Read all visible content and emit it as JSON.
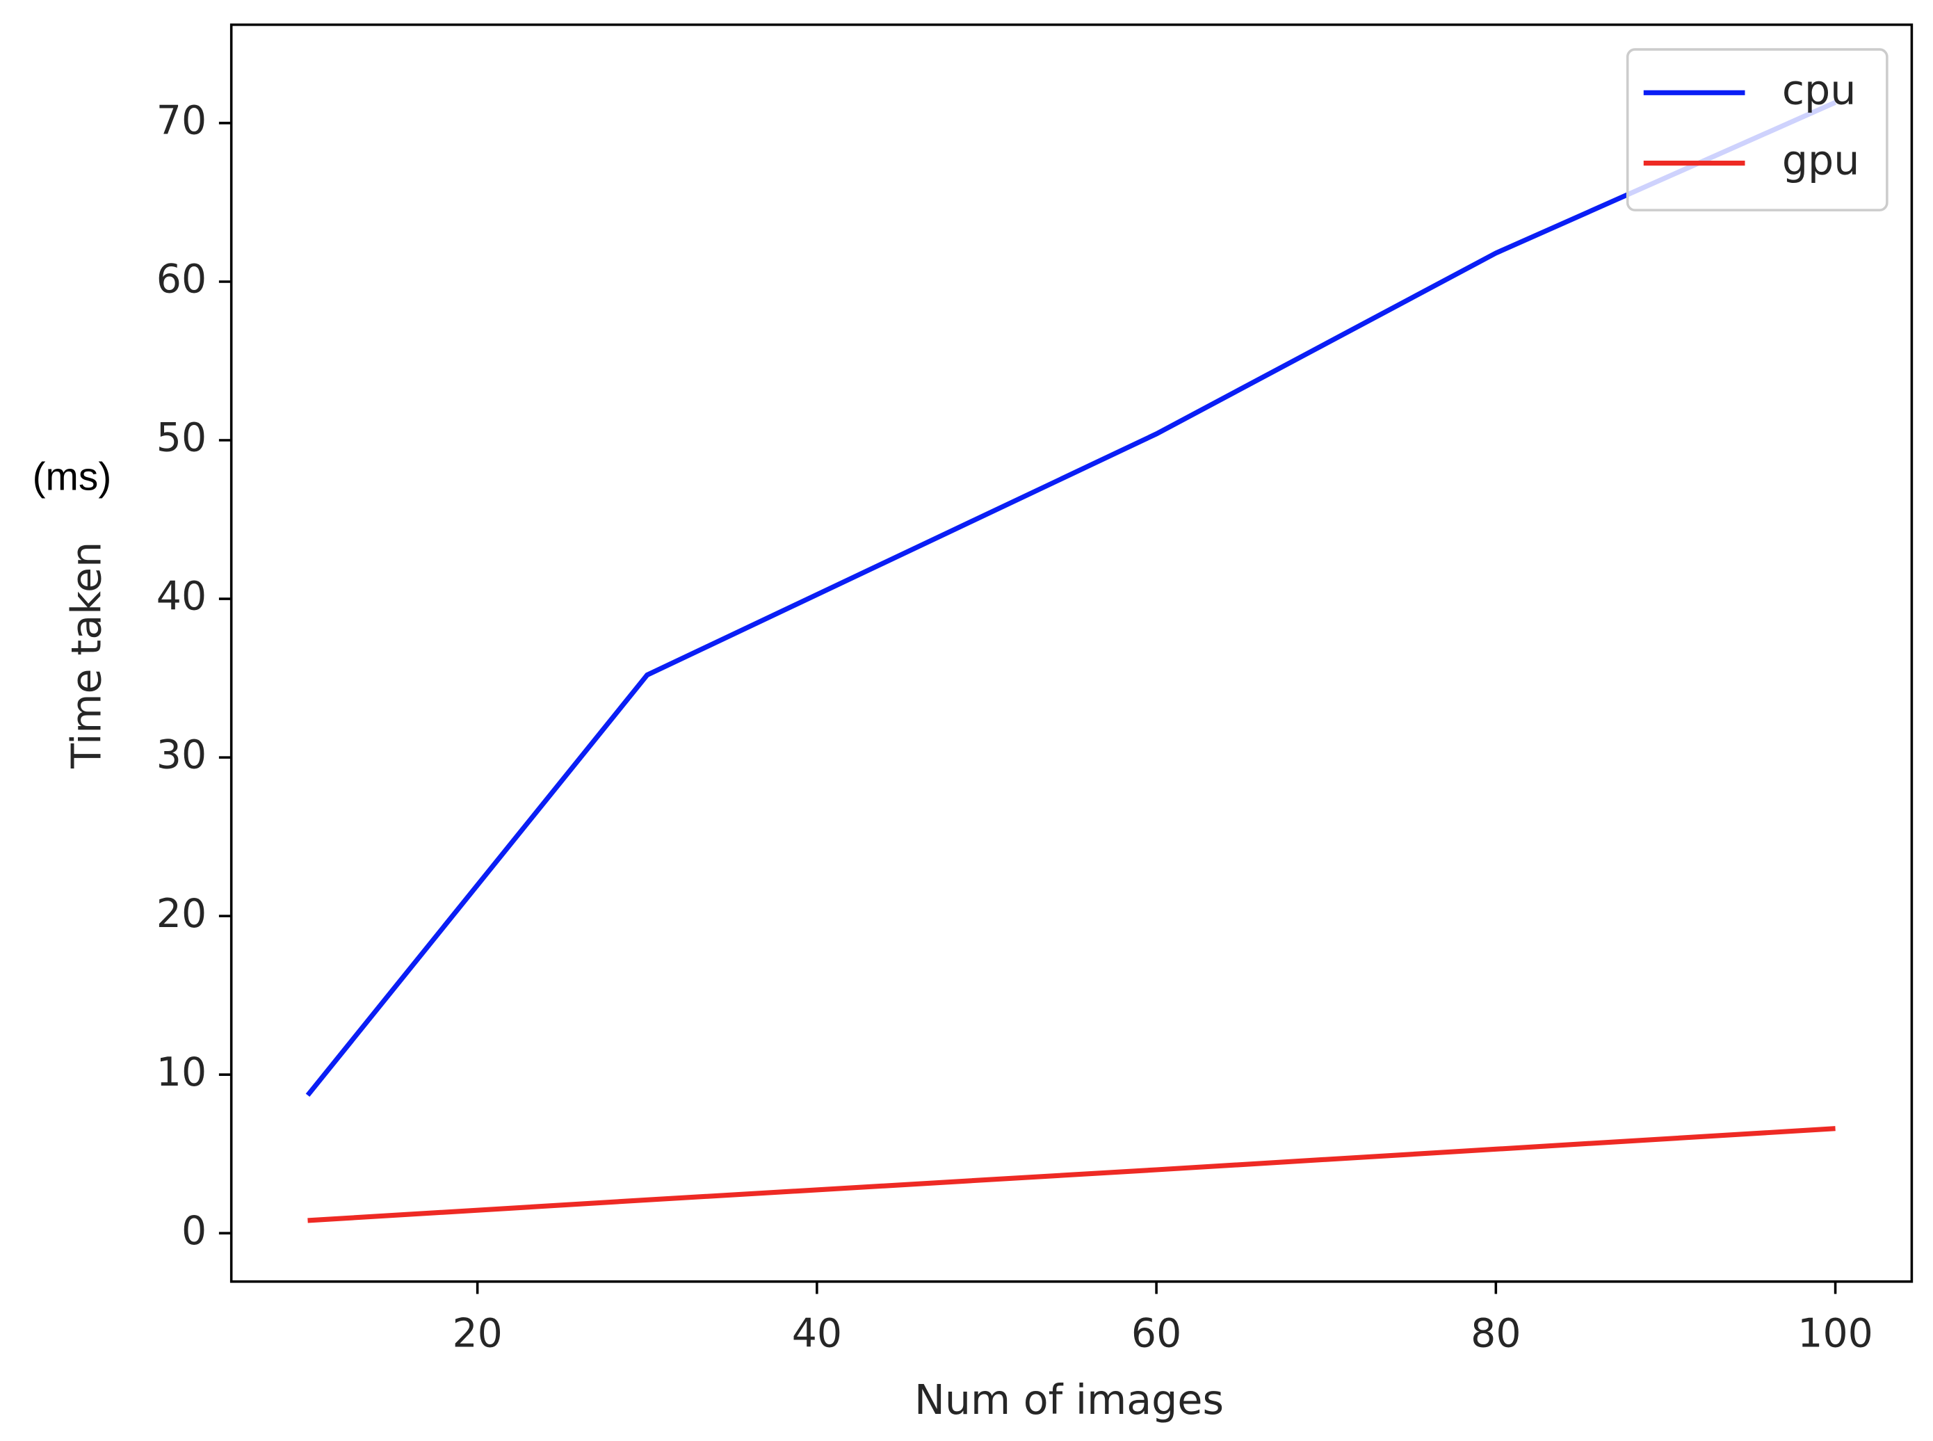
{
  "chart_data": {
    "type": "line",
    "xlabel": "Num of images",
    "ylabel": "Time taken",
    "annotations": [
      "(ms)"
    ],
    "x": [
      10,
      30,
      60,
      80,
      100
    ],
    "series": [
      {
        "name": "cpu",
        "color": "#0a1ef5",
        "values": [
          8.7,
          35.2,
          50.4,
          61.8,
          71.3
        ]
      },
      {
        "name": "gpu",
        "color": "#ee2a24",
        "values": [
          0.8,
          2.1,
          4.0,
          5.3,
          6.6
        ]
      }
    ],
    "xlim": [
      5.5,
      104.5
    ],
    "ylim": [
      -3.05,
      76.2
    ],
    "xticks": [
      20,
      40,
      60,
      80,
      100
    ],
    "yticks": [
      0,
      10,
      20,
      30,
      40,
      50,
      60,
      70
    ],
    "legend": "upper-right",
    "grid": false
  }
}
